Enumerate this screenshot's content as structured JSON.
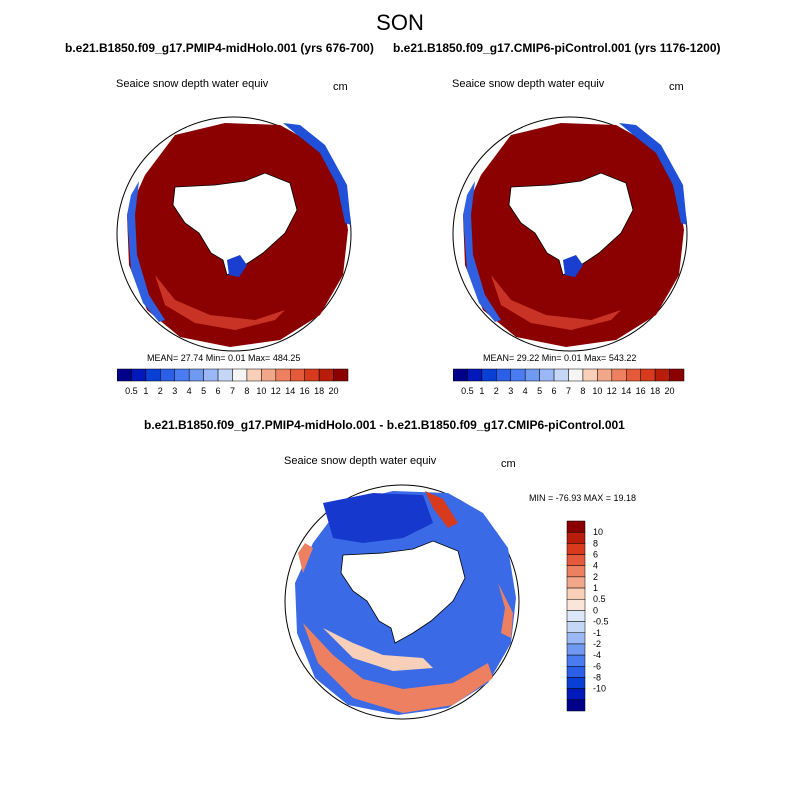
{
  "title": "SON",
  "panels": [
    {
      "title": "b.e21.B1850.f09_g17.PMIP4-midHolo.001 (yrs 676-700)",
      "variable": "Seaice snow depth water equiv",
      "units": "cm",
      "stats": {
        "mean": "27.74",
        "min": "0.01",
        "max": "484.25"
      },
      "stats_text": "MEAN=  27.74  Min=    0.01  Max= 484.25"
    },
    {
      "title": "b.e21.B1850.f09_g17.CMIP6-piControl.001 (yrs 1176-1200)",
      "variable": "Seaice snow depth water equiv",
      "units": "cm",
      "stats": {
        "mean": "29.22",
        "min": "0.01",
        "max": "543.22"
      },
      "stats_text": "MEAN=  29.22  Min=    0.01  Max= 543.22"
    },
    {
      "title": "b.e21.B1850.f09_g17.PMIP4-midHolo.001 - b.e21.B1850.f09_g17.CMIP6-piControl.001",
      "variable": "Seaice snow depth water equiv",
      "units": "cm",
      "stats_text": "MIN = -76.93 MAX =  19.18"
    }
  ],
  "colorbar_abs": {
    "labels": [
      "0.5",
      "1",
      "2",
      "3",
      "4",
      "5",
      "6",
      "7",
      "8",
      "10",
      "12",
      "14",
      "16",
      "18",
      "20"
    ],
    "colors": [
      "#00008b",
      "#0019b8",
      "#0a3fd6",
      "#2b5fe8",
      "#4a7bf0",
      "#7099f2",
      "#9ab8f5",
      "#c5d7f7",
      "#f5f5f5",
      "#f8cfb8",
      "#f2a888",
      "#ec8060",
      "#e55a3a",
      "#d83a1e",
      "#b81c0a",
      "#8b0000"
    ]
  },
  "colorbar_diff": {
    "labels": [
      "10",
      "8",
      "6",
      "4",
      "2",
      "1",
      "0.5",
      "0",
      "-0.5",
      "-1",
      "-2",
      "-4",
      "-6",
      "-8",
      "-10"
    ],
    "colors": [
      "#8b0000",
      "#b81c0a",
      "#d83a1e",
      "#e55a3a",
      "#ec8060",
      "#f2a888",
      "#f8cfb8",
      "#fbe5d8",
      "#dce7f8",
      "#c5d7f7",
      "#9ab8f5",
      "#7099f2",
      "#4a7bf0",
      "#2b5fe8",
      "#0a3fd6",
      "#0019b8",
      "#00008b"
    ]
  },
  "chart_data": [
    {
      "type": "heatmap",
      "title": "b.e21.B1850.f09_g17.PMIP4-midHolo.001 (yrs 676-700)",
      "variable": "Seaice snow depth water equiv",
      "units": "cm",
      "projection": "south polar stereographic",
      "mean": 27.74,
      "min": 0.01,
      "max": 484.25
    },
    {
      "type": "heatmap",
      "title": "b.e21.B1850.f09_g17.CMIP6-piControl.001 (yrs 1176-1200)",
      "variable": "Seaice snow depth water equiv",
      "units": "cm",
      "projection": "south polar stereographic",
      "mean": 29.22,
      "min": 0.01,
      "max": 543.22
    },
    {
      "type": "heatmap",
      "title": "b.e21.B1850.f09_g17.PMIP4-midHolo.001 - b.e21.B1850.f09_g17.CMIP6-piControl.001",
      "variable": "Seaice snow depth water equiv",
      "units": "cm",
      "projection": "south polar stereographic",
      "min": -76.93,
      "max": 19.18
    }
  ]
}
